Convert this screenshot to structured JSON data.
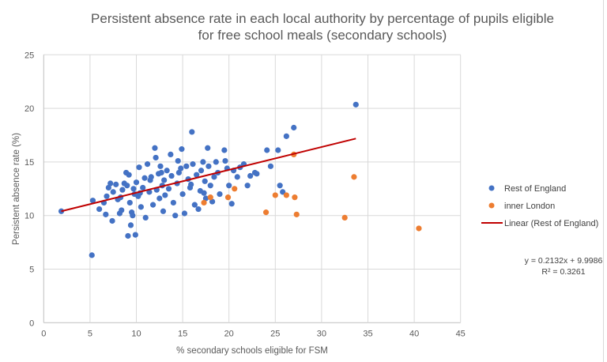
{
  "chart_data": {
    "type": "scatter",
    "title": "Persistent absence rate in each local authority by percentage of pupils eligible for free school meals (secondary schools)",
    "title_lines": [
      "Persistent absence rate in each local authority by percentage of pupils eligible",
      "for free school meals (secondary schools)"
    ],
    "xlabel": "% secondary schools eligible for FSM",
    "ylabel": "Persistent absence rate (%)",
    "xlim": [
      0,
      45
    ],
    "ylim": [
      0,
      25
    ],
    "xticks": [
      0,
      5,
      10,
      15,
      20,
      25,
      30,
      35,
      40,
      45
    ],
    "yticks": [
      0,
      5,
      10,
      15,
      20,
      25
    ],
    "grid": true,
    "legend_position": "right",
    "series": [
      {
        "name": "Rest of England",
        "color": "#4472c4",
        "points": [
          [
            1.9,
            10.4
          ],
          [
            5.2,
            6.3
          ],
          [
            5.3,
            11.4
          ],
          [
            6.0,
            10.6
          ],
          [
            6.7,
            10.1
          ],
          [
            7.4,
            9.5
          ],
          [
            9.1,
            8.1
          ],
          [
            9.9,
            8.2
          ],
          [
            9.4,
            9.1
          ],
          [
            6.5,
            11.2
          ],
          [
            6.8,
            11.8
          ],
          [
            7.0,
            12.6
          ],
          [
            7.2,
            13.0
          ],
          [
            7.5,
            12.2
          ],
          [
            7.8,
            12.9
          ],
          [
            8.0,
            11.5
          ],
          [
            8.2,
            10.2
          ],
          [
            8.4,
            10.5
          ],
          [
            8.5,
            12.4
          ],
          [
            8.7,
            13.0
          ],
          [
            8.9,
            14.0
          ],
          [
            9.0,
            12.8
          ],
          [
            9.2,
            13.8
          ],
          [
            9.3,
            11.2
          ],
          [
            9.5,
            10.3
          ],
          [
            9.6,
            10.0
          ],
          [
            9.8,
            12.0
          ],
          [
            10.0,
            13.1
          ],
          [
            10.2,
            11.8
          ],
          [
            10.3,
            14.5
          ],
          [
            10.5,
            10.8
          ],
          [
            10.7,
            12.6
          ],
          [
            10.9,
            13.5
          ],
          [
            11.0,
            9.8
          ],
          [
            11.2,
            14.8
          ],
          [
            11.4,
            12.2
          ],
          [
            11.6,
            13.6
          ],
          [
            11.8,
            11.0
          ],
          [
            12.0,
            16.3
          ],
          [
            12.1,
            15.4
          ],
          [
            12.2,
            12.4
          ],
          [
            12.4,
            13.9
          ],
          [
            12.5,
            11.6
          ],
          [
            12.6,
            14.6
          ],
          [
            12.8,
            12.8
          ],
          [
            12.9,
            10.4
          ],
          [
            13.0,
            13.3
          ],
          [
            13.1,
            11.9
          ],
          [
            13.3,
            14.2
          ],
          [
            13.5,
            12.5
          ],
          [
            13.7,
            15.7
          ],
          [
            13.8,
            13.7
          ],
          [
            14.0,
            11.2
          ],
          [
            14.2,
            10.0
          ],
          [
            14.4,
            13.0
          ],
          [
            14.5,
            15.1
          ],
          [
            14.6,
            14.0
          ],
          [
            14.9,
            16.2
          ],
          [
            15.0,
            12.0
          ],
          [
            15.2,
            10.2
          ],
          [
            15.4,
            14.6
          ],
          [
            15.6,
            13.4
          ],
          [
            15.8,
            12.6
          ],
          [
            16.0,
            17.8
          ],
          [
            16.1,
            14.8
          ],
          [
            16.3,
            11.0
          ],
          [
            16.5,
            13.8
          ],
          [
            16.7,
            10.6
          ],
          [
            16.9,
            12.3
          ],
          [
            17.0,
            14.2
          ],
          [
            17.2,
            15.0
          ],
          [
            17.4,
            13.2
          ],
          [
            17.5,
            11.6
          ],
          [
            17.7,
            16.3
          ],
          [
            17.8,
            14.6
          ],
          [
            18.0,
            12.8
          ],
          [
            18.2,
            11.3
          ],
          [
            18.4,
            13.6
          ],
          [
            18.6,
            15.0
          ],
          [
            18.8,
            14.0
          ],
          [
            19.0,
            12.0
          ],
          [
            19.5,
            16.1
          ],
          [
            19.6,
            15.1
          ],
          [
            19.8,
            14.4
          ],
          [
            20.0,
            12.8
          ],
          [
            20.3,
            11.1
          ],
          [
            20.5,
            14.2
          ],
          [
            20.9,
            13.6
          ],
          [
            21.2,
            14.5
          ],
          [
            21.6,
            14.8
          ],
          [
            22.0,
            12.8
          ],
          [
            22.3,
            13.7
          ],
          [
            22.8,
            14.0
          ],
          [
            23.0,
            13.9
          ],
          [
            24.1,
            16.1
          ],
          [
            24.5,
            14.6
          ],
          [
            25.3,
            16.1
          ],
          [
            25.5,
            12.8
          ],
          [
            25.8,
            12.2
          ],
          [
            26.2,
            17.4
          ],
          [
            27.0,
            18.2
          ],
          [
            33.7,
            20.35
          ],
          [
            10.4,
            12.1
          ],
          [
            11.5,
            13.3
          ],
          [
            12.7,
            14.0
          ],
          [
            14.8,
            14.4
          ],
          [
            15.9,
            12.9
          ],
          [
            17.3,
            12.1
          ],
          [
            8.3,
            11.7
          ],
          [
            9.7,
            12.5
          ]
        ]
      },
      {
        "name": "inner London",
        "color": "#ed7d31",
        "points": [
          [
            17.3,
            11.2
          ],
          [
            18.0,
            11.7
          ],
          [
            19.9,
            11.7
          ],
          [
            20.6,
            12.5
          ],
          [
            24.0,
            10.3
          ],
          [
            25.0,
            11.9
          ],
          [
            26.2,
            11.9
          ],
          [
            27.0,
            15.7
          ],
          [
            27.1,
            11.7
          ],
          [
            27.3,
            10.1
          ],
          [
            32.5,
            9.8
          ],
          [
            33.5,
            13.6
          ],
          [
            40.5,
            8.8
          ]
        ]
      }
    ],
    "trendline": {
      "name": "Linear (Rest of England)",
      "color": "#c00000",
      "slope": 0.2132,
      "intercept": 9.9986,
      "x_range": [
        1.9,
        33.7
      ],
      "equation_label": "y = 0.2132x + 9.9986",
      "r2_label": "R² = 0.3261"
    }
  }
}
